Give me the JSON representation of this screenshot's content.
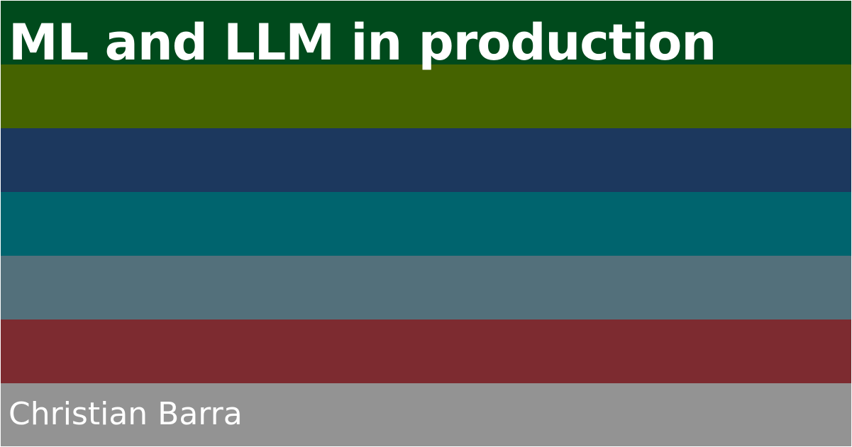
{
  "title": "ML and LLM in production",
  "author": "Christian Barra",
  "stripes": [
    {
      "color": "#004a1c"
    },
    {
      "color": "#456300"
    },
    {
      "color": "#1c385e"
    },
    {
      "color": "#00646e"
    },
    {
      "color": "#53707b"
    },
    {
      "color": "#7d2b30"
    },
    {
      "color": "#939393"
    }
  ]
}
